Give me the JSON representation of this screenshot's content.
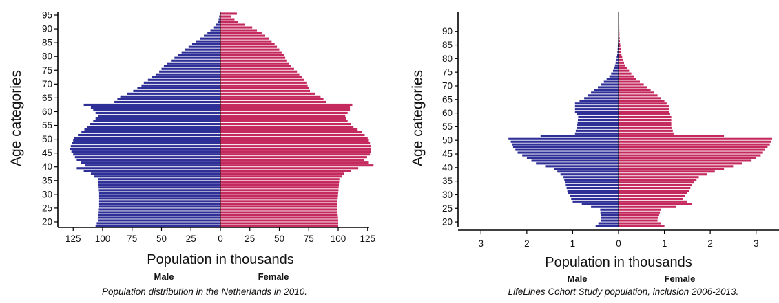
{
  "colors": {
    "male": "#2f2f98",
    "female": "#c52a5e",
    "axis": "#000000"
  },
  "chart_data": [
    {
      "type": "bar",
      "orientation": "horizontal-pyramid",
      "title": "",
      "caption": "Population distribution in the Netherlands in 2010.",
      "ylabel": "Age categories",
      "xlabel": "Population in thousands",
      "male_label": "Male",
      "female_label": "Female",
      "ylim": [
        18,
        96
      ],
      "xlim": [
        -138,
        138
      ],
      "yticks": [
        20,
        25,
        30,
        35,
        40,
        45,
        50,
        55,
        60,
        65,
        70,
        75,
        80,
        85,
        90,
        95
      ],
      "ytick_labels": [
        "20",
        "25",
        "30",
        "35",
        "40",
        "45",
        "50",
        "55",
        "60",
        "65",
        "70",
        "75",
        "80",
        "85",
        "90",
        "95"
      ],
      "xticks": [
        -125,
        -100,
        -75,
        -50,
        -25,
        0,
        25,
        50,
        75,
        100,
        125
      ],
      "xtick_labels": [
        "125",
        "100",
        "75",
        "50",
        "25",
        "0",
        "25",
        "50",
        "75",
        "100",
        "125"
      ],
      "series": [
        {
          "name": "Male",
          "anchors": [
            [
              18,
              106
            ],
            [
              20,
              104
            ],
            [
              25,
              103
            ],
            [
              30,
              103
            ],
            [
              35,
              104
            ],
            [
              37,
              110
            ],
            [
              39,
              122
            ],
            [
              40,
              115
            ],
            [
              42,
              122
            ],
            [
              44,
              125
            ],
            [
              46,
              128
            ],
            [
              48,
              126
            ],
            [
              50,
              124
            ],
            [
              52,
              118
            ],
            [
              54,
              113
            ],
            [
              56,
              108
            ],
            [
              58,
              104
            ],
            [
              60,
              108
            ],
            [
              61,
              110
            ],
            [
              62,
              116
            ],
            [
              63,
              90
            ],
            [
              65,
              85
            ],
            [
              67,
              74
            ],
            [
              69,
              67
            ],
            [
              70,
              65
            ],
            [
              72,
              58
            ],
            [
              74,
              52
            ],
            [
              76,
              48
            ],
            [
              78,
              42
            ],
            [
              80,
              36
            ],
            [
              82,
              30
            ],
            [
              84,
              24
            ],
            [
              86,
              17
            ],
            [
              88,
              11
            ],
            [
              90,
              6
            ],
            [
              92,
              2
            ],
            [
              94,
              1
            ],
            [
              95,
              0
            ]
          ]
        },
        {
          "name": "Female",
          "anchors": [
            [
              18,
              100
            ],
            [
              20,
              100
            ],
            [
              25,
              99
            ],
            [
              30,
              100
            ],
            [
              35,
              101
            ],
            [
              37,
              105
            ],
            [
              39,
              117
            ],
            [
              40,
              130
            ],
            [
              42,
              122
            ],
            [
              44,
              127
            ],
            [
              46,
              128
            ],
            [
              48,
              127
            ],
            [
              50,
              125
            ],
            [
              52,
              120
            ],
            [
              54,
              113
            ],
            [
              56,
              108
            ],
            [
              58,
              106
            ],
            [
              60,
              110
            ],
            [
              61,
              110
            ],
            [
              62,
              112
            ],
            [
              63,
              90
            ],
            [
              65,
              85
            ],
            [
              67,
              76
            ],
            [
              69,
              74
            ],
            [
              70,
              73
            ],
            [
              72,
              69
            ],
            [
              74,
              65
            ],
            [
              76,
              60
            ],
            [
              78,
              56
            ],
            [
              80,
              54
            ],
            [
              82,
              50
            ],
            [
              84,
              46
            ],
            [
              86,
              41
            ],
            [
              88,
              35
            ],
            [
              90,
              27
            ],
            [
              92,
              15
            ],
            [
              94,
              9
            ],
            [
              95,
              14
            ]
          ]
        }
      ]
    },
    {
      "type": "bar",
      "orientation": "horizontal-pyramid",
      "title": "",
      "caption": "LifeLines Cohort Study population, inclusion 2006-2013.",
      "ylabel": "Age categories",
      "xlabel": "Population in thousands",
      "male_label": "Male",
      "female_label": "Female",
      "ylim": [
        18,
        97
      ],
      "xlim": [
        -3.5,
        3.5
      ],
      "yticks": [
        20,
        25,
        30,
        35,
        40,
        45,
        50,
        55,
        60,
        65,
        70,
        75,
        80,
        85,
        90
      ],
      "ytick_labels": [
        "20",
        "25",
        "30",
        "35",
        "40",
        "45",
        "50",
        "55",
        "60",
        "65",
        "70",
        "75",
        "80",
        "85",
        "90"
      ],
      "xticks": [
        -3,
        -2,
        -1,
        0,
        1,
        2,
        3
      ],
      "xtick_labels": [
        "3",
        "2",
        "1",
        "0",
        "1",
        "2",
        "3"
      ],
      "series": [
        {
          "name": "Male",
          "anchors": [
            [
              18,
              0.5
            ],
            [
              20,
              0.38
            ],
            [
              24,
              0.4
            ],
            [
              27,
              1.0
            ],
            [
              30,
              1.1
            ],
            [
              33,
              1.15
            ],
            [
              36,
              1.2
            ],
            [
              39,
              1.4
            ],
            [
              41,
              1.8
            ],
            [
              43,
              2.0
            ],
            [
              45,
              2.2
            ],
            [
              47,
              2.3
            ],
            [
              49,
              2.35
            ],
            [
              50,
              2.4
            ],
            [
              51,
              1.7
            ],
            [
              52,
              0.95
            ],
            [
              55,
              0.9
            ],
            [
              58,
              0.88
            ],
            [
              60,
              0.95
            ],
            [
              63,
              0.95
            ],
            [
              65,
              0.75
            ],
            [
              67,
              0.6
            ],
            [
              69,
              0.45
            ],
            [
              71,
              0.32
            ],
            [
              73,
              0.2
            ],
            [
              75,
              0.12
            ],
            [
              77,
              0.08
            ],
            [
              79,
              0.05
            ],
            [
              81,
              0.03
            ],
            [
              83,
              0.02
            ],
            [
              86,
              0.01
            ],
            [
              97,
              0
            ]
          ]
        },
        {
          "name": "Female",
          "anchors": [
            [
              18,
              1.0
            ],
            [
              20,
              0.85
            ],
            [
              24,
              0.92
            ],
            [
              26,
              1.6
            ],
            [
              28,
              1.4
            ],
            [
              30,
              1.5
            ],
            [
              33,
              1.6
            ],
            [
              36,
              1.75
            ],
            [
              38,
              2.1
            ],
            [
              40,
              2.5
            ],
            [
              42,
              2.9
            ],
            [
              44,
              3.1
            ],
            [
              46,
              3.2
            ],
            [
              48,
              3.3
            ],
            [
              50,
              3.35
            ],
            [
              51,
              2.3
            ],
            [
              52,
              1.2
            ],
            [
              55,
              1.15
            ],
            [
              58,
              1.15
            ],
            [
              60,
              1.1
            ],
            [
              62,
              1.1
            ],
            [
              64,
              1.0
            ],
            [
              66,
              0.85
            ],
            [
              68,
              0.7
            ],
            [
              70,
              0.55
            ],
            [
              72,
              0.38
            ],
            [
              74,
              0.28
            ],
            [
              76,
              0.18
            ],
            [
              78,
              0.12
            ],
            [
              80,
              0.08
            ],
            [
              82,
              0.05
            ],
            [
              84,
              0.04
            ],
            [
              86,
              0.03
            ],
            [
              88,
              0.02
            ],
            [
              97,
              0.01
            ]
          ]
        }
      ]
    }
  ]
}
